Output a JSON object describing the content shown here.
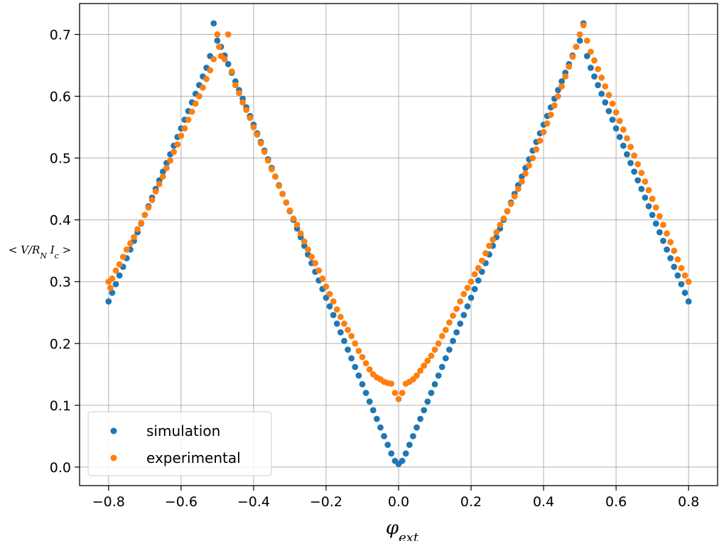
{
  "chart_data": {
    "type": "scatter",
    "title": "",
    "xlabel": "φ_ext",
    "ylabel": "< V/R_N I_c >",
    "xlim": [
      -0.88,
      0.88
    ],
    "ylim": [
      -0.03,
      0.75
    ],
    "xticks": [
      -0.8,
      -0.6,
      -0.4,
      -0.2,
      0.0,
      0.2,
      0.4,
      0.6,
      0.8
    ],
    "xtick_labels": [
      "−0.8",
      "−0.6",
      "−0.4",
      "−0.2",
      "0.0",
      "0.2",
      "0.4",
      "0.6",
      "0.8"
    ],
    "yticks": [
      0.0,
      0.1,
      0.2,
      0.3,
      0.4,
      0.5,
      0.6,
      0.7
    ],
    "ytick_labels": [
      "0.0",
      "0.1",
      "0.2",
      "0.3",
      "0.4",
      "0.5",
      "0.6",
      "0.7"
    ],
    "grid": true,
    "legend_position": "lower-left",
    "series": [
      {
        "name": "simulation",
        "color": "#1f77b4",
        "x": [
          -0.8,
          -0.79,
          -0.78,
          -0.77,
          -0.76,
          -0.75,
          -0.74,
          -0.73,
          -0.72,
          -0.71,
          -0.7,
          -0.69,
          -0.68,
          -0.67,
          -0.66,
          -0.65,
          -0.64,
          -0.63,
          -0.62,
          -0.61,
          -0.6,
          -0.59,
          -0.58,
          -0.57,
          -0.56,
          -0.55,
          -0.54,
          -0.53,
          -0.52,
          -0.51,
          -0.5,
          -0.49,
          -0.48,
          -0.47,
          -0.46,
          -0.45,
          -0.44,
          -0.43,
          -0.42,
          -0.41,
          -0.4,
          -0.39,
          -0.38,
          -0.37,
          -0.36,
          -0.35,
          -0.34,
          -0.33,
          -0.32,
          -0.31,
          -0.3,
          -0.29,
          -0.28,
          -0.27,
          -0.26,
          -0.25,
          -0.24,
          -0.23,
          -0.22,
          -0.21,
          -0.2,
          -0.19,
          -0.18,
          -0.17,
          -0.16,
          -0.15,
          -0.14,
          -0.13,
          -0.12,
          -0.11,
          -0.1,
          -0.09,
          -0.08,
          -0.07,
          -0.06,
          -0.05,
          -0.04,
          -0.03,
          -0.02,
          -0.01,
          0.0,
          0.01,
          0.02,
          0.03,
          0.04,
          0.05,
          0.06,
          0.07,
          0.08,
          0.09,
          0.1,
          0.11,
          0.12,
          0.13,
          0.14,
          0.15,
          0.16,
          0.17,
          0.18,
          0.19,
          0.2,
          0.21,
          0.22,
          0.23,
          0.24,
          0.25,
          0.26,
          0.27,
          0.28,
          0.29,
          0.3,
          0.31,
          0.32,
          0.33,
          0.34,
          0.35,
          0.36,
          0.37,
          0.38,
          0.39,
          0.4,
          0.41,
          0.42,
          0.43,
          0.44,
          0.45,
          0.46,
          0.47,
          0.48,
          0.49,
          0.5,
          0.51,
          0.52,
          0.53,
          0.54,
          0.55,
          0.56,
          0.57,
          0.58,
          0.59,
          0.6,
          0.61,
          0.62,
          0.63,
          0.64,
          0.65,
          0.66,
          0.67,
          0.68,
          0.69,
          0.7,
          0.71,
          0.72,
          0.73,
          0.74,
          0.75,
          0.76,
          0.77,
          0.78,
          0.79,
          0.8
        ],
        "y": [
          0.268,
          0.282,
          0.296,
          0.31,
          0.324,
          0.338,
          0.352,
          0.366,
          0.38,
          0.394,
          0.408,
          0.422,
          0.436,
          0.45,
          0.464,
          0.478,
          0.492,
          0.506,
          0.52,
          0.534,
          0.548,
          0.562,
          0.576,
          0.59,
          0.604,
          0.618,
          0.632,
          0.646,
          0.665,
          0.718,
          0.69,
          0.68,
          0.666,
          0.652,
          0.638,
          0.624,
          0.61,
          0.596,
          0.582,
          0.568,
          0.554,
          0.54,
          0.526,
          0.512,
          0.498,
          0.484,
          0.47,
          0.456,
          0.442,
          0.428,
          0.414,
          0.4,
          0.386,
          0.372,
          0.358,
          0.344,
          0.33,
          0.316,
          0.302,
          0.288,
          0.274,
          0.26,
          0.246,
          0.232,
          0.218,
          0.204,
          0.19,
          0.176,
          0.162,
          0.148,
          0.134,
          0.12,
          0.106,
          0.092,
          0.078,
          0.064,
          0.05,
          0.036,
          0.022,
          0.01,
          0.005,
          0.01,
          0.022,
          0.036,
          0.05,
          0.064,
          0.078,
          0.092,
          0.106,
          0.12,
          0.134,
          0.148,
          0.162,
          0.176,
          0.19,
          0.204,
          0.218,
          0.232,
          0.246,
          0.26,
          0.274,
          0.288,
          0.302,
          0.316,
          0.33,
          0.344,
          0.358,
          0.372,
          0.386,
          0.4,
          0.414,
          0.428,
          0.442,
          0.456,
          0.47,
          0.484,
          0.498,
          0.512,
          0.526,
          0.54,
          0.554,
          0.568,
          0.582,
          0.596,
          0.61,
          0.624,
          0.638,
          0.652,
          0.666,
          0.68,
          0.69,
          0.718,
          0.665,
          0.646,
          0.632,
          0.618,
          0.604,
          0.59,
          0.576,
          0.562,
          0.548,
          0.534,
          0.52,
          0.506,
          0.492,
          0.478,
          0.464,
          0.45,
          0.436,
          0.422,
          0.408,
          0.394,
          0.38,
          0.366,
          0.352,
          0.338,
          0.324,
          0.31,
          0.296,
          0.282,
          0.268
        ]
      },
      {
        "name": "experimental",
        "color": "#ff7f0e",
        "x": [
          -0.8,
          -0.795,
          -0.79,
          -0.78,
          -0.77,
          -0.76,
          -0.75,
          -0.74,
          -0.73,
          -0.72,
          -0.71,
          -0.7,
          -0.69,
          -0.68,
          -0.67,
          -0.66,
          -0.65,
          -0.64,
          -0.63,
          -0.62,
          -0.61,
          -0.6,
          -0.59,
          -0.58,
          -0.57,
          -0.56,
          -0.55,
          -0.54,
          -0.53,
          -0.52,
          -0.51,
          -0.5,
          -0.495,
          -0.49,
          -0.48,
          -0.47,
          -0.46,
          -0.45,
          -0.44,
          -0.43,
          -0.42,
          -0.41,
          -0.4,
          -0.39,
          -0.38,
          -0.37,
          -0.36,
          -0.35,
          -0.34,
          -0.33,
          -0.32,
          -0.31,
          -0.3,
          -0.29,
          -0.28,
          -0.27,
          -0.26,
          -0.25,
          -0.24,
          -0.23,
          -0.22,
          -0.21,
          -0.2,
          -0.19,
          -0.18,
          -0.17,
          -0.16,
          -0.15,
          -0.14,
          -0.13,
          -0.12,
          -0.11,
          -0.1,
          -0.09,
          -0.08,
          -0.07,
          -0.06,
          -0.05,
          -0.04,
          -0.03,
          -0.02,
          -0.01,
          0.0,
          0.01,
          0.02,
          0.03,
          0.04,
          0.05,
          0.06,
          0.07,
          0.08,
          0.09,
          0.1,
          0.11,
          0.12,
          0.13,
          0.14,
          0.15,
          0.16,
          0.17,
          0.18,
          0.19,
          0.2,
          0.21,
          0.22,
          0.23,
          0.24,
          0.25,
          0.26,
          0.27,
          0.28,
          0.29,
          0.3,
          0.31,
          0.32,
          0.33,
          0.34,
          0.35,
          0.36,
          0.37,
          0.38,
          0.39,
          0.4,
          0.41,
          0.42,
          0.43,
          0.44,
          0.45,
          0.46,
          0.47,
          0.48,
          0.49,
          0.5,
          0.51,
          0.52,
          0.53,
          0.54,
          0.55,
          0.56,
          0.57,
          0.58,
          0.59,
          0.6,
          0.61,
          0.62,
          0.63,
          0.64,
          0.65,
          0.66,
          0.67,
          0.68,
          0.69,
          0.7,
          0.71,
          0.72,
          0.73,
          0.74,
          0.75,
          0.76,
          0.77,
          0.78,
          0.79,
          0.8
        ],
        "y": [
          0.3,
          0.29,
          0.305,
          0.318,
          0.328,
          0.34,
          0.352,
          0.362,
          0.372,
          0.385,
          0.395,
          0.408,
          0.42,
          0.432,
          0.446,
          0.458,
          0.47,
          0.484,
          0.496,
          0.51,
          0.522,
          0.536,
          0.548,
          0.562,
          0.575,
          0.588,
          0.6,
          0.614,
          0.628,
          0.642,
          0.66,
          0.7,
          0.68,
          0.665,
          0.66,
          0.7,
          0.64,
          0.618,
          0.605,
          0.59,
          0.578,
          0.565,
          0.55,
          0.538,
          0.524,
          0.51,
          0.496,
          0.482,
          0.47,
          0.455,
          0.442,
          0.428,
          0.415,
          0.402,
          0.392,
          0.378,
          0.365,
          0.352,
          0.34,
          0.33,
          0.318,
          0.305,
          0.292,
          0.28,
          0.268,
          0.255,
          0.243,
          0.232,
          0.222,
          0.212,
          0.2,
          0.188,
          0.178,
          0.168,
          0.158,
          0.15,
          0.145,
          0.142,
          0.138,
          0.136,
          0.135,
          0.12,
          0.11,
          0.12,
          0.135,
          0.138,
          0.142,
          0.148,
          0.156,
          0.164,
          0.172,
          0.18,
          0.19,
          0.2,
          0.212,
          0.222,
          0.234,
          0.245,
          0.256,
          0.268,
          0.28,
          0.29,
          0.3,
          0.312,
          0.322,
          0.334,
          0.346,
          0.358,
          0.368,
          0.38,
          0.392,
          0.402,
          0.414,
          0.426,
          0.438,
          0.45,
          0.462,
          0.475,
          0.488,
          0.5,
          0.514,
          0.528,
          0.542,
          0.556,
          0.57,
          0.585,
          0.6,
          0.616,
          0.632,
          0.648,
          0.664,
          0.68,
          0.7,
          0.715,
          0.69,
          0.672,
          0.658,
          0.644,
          0.63,
          0.616,
          0.602,
          0.588,
          0.574,
          0.56,
          0.546,
          0.532,
          0.518,
          0.504,
          0.49,
          0.476,
          0.462,
          0.448,
          0.434,
          0.42,
          0.406,
          0.392,
          0.378,
          0.364,
          0.35,
          0.336,
          0.322,
          0.31,
          0.3
        ]
      }
    ]
  }
}
